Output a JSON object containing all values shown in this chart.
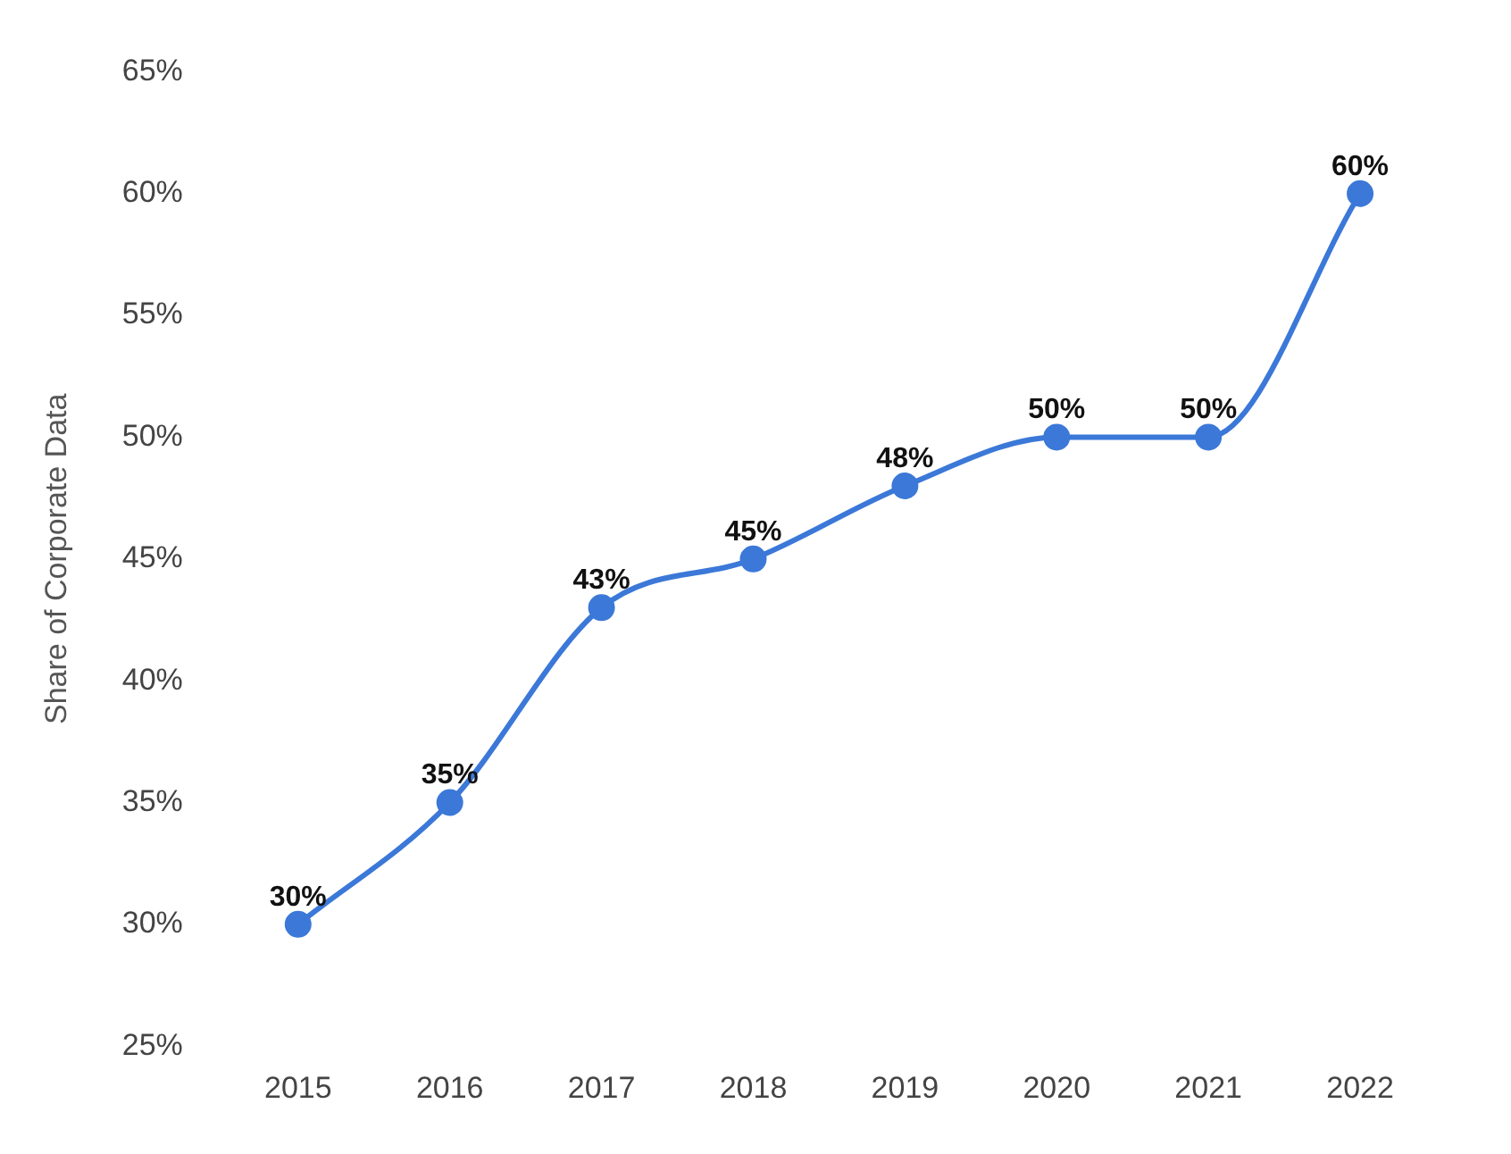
{
  "chart_data": {
    "type": "line",
    "ylabel": "Share of Corporate Data",
    "categories": [
      "2015",
      "2016",
      "2017",
      "2018",
      "2019",
      "2020",
      "2021",
      "2022"
    ],
    "series": [
      {
        "color": "#3b78d8",
        "values": [
          30,
          35,
          43,
          45,
          48,
          50,
          50,
          60
        ],
        "value_labels": [
          "30%",
          "35%",
          "43%",
          "45%",
          "48%",
          "50%",
          "50%",
          "60%"
        ]
      }
    ],
    "ylim": [
      25,
      65
    ],
    "yticks": [
      {
        "value": 25,
        "label": "25%"
      },
      {
        "value": 30,
        "label": "30%"
      },
      {
        "value": 35,
        "label": "35%"
      },
      {
        "value": 40,
        "label": "40%"
      },
      {
        "value": 45,
        "label": "45%"
      },
      {
        "value": 50,
        "label": "50%"
      },
      {
        "value": 55,
        "label": "55%"
      },
      {
        "value": 60,
        "label": "60%"
      },
      {
        "value": 65,
        "label": "65%"
      }
    ],
    "grid": false,
    "legend": false,
    "marker": "circle",
    "line_style": "solid"
  }
}
